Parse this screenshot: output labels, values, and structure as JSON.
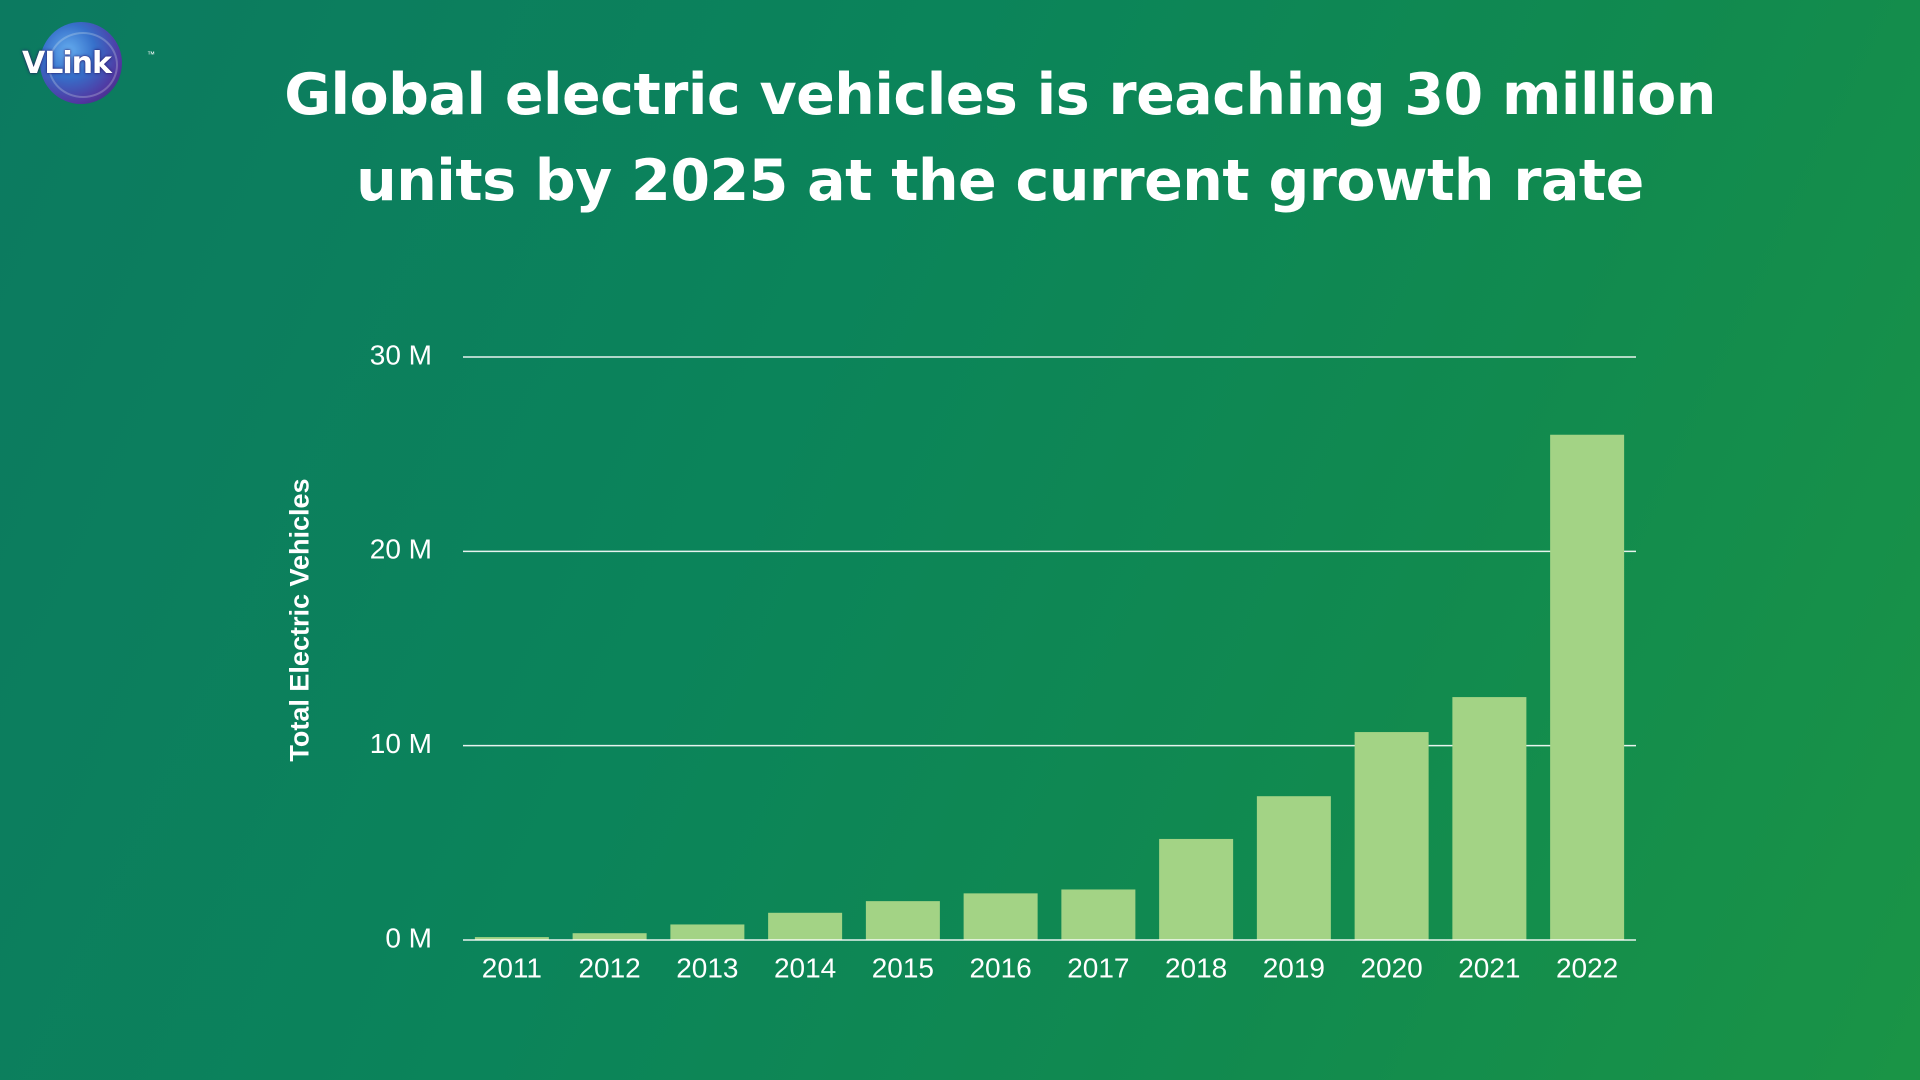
{
  "logo": {
    "text": "VLink",
    "tm": "™"
  },
  "title": {
    "line1": "Global electric vehicles is reaching 30 million",
    "line2": "units by 2025 at the current growth rate"
  },
  "colors": {
    "bar": "#a3d385",
    "gridline": "#ffffff",
    "text": "#ffffff"
  },
  "chart_data": {
    "type": "bar",
    "title": "Global electric vehicles is reaching 30 million units by 2025 at the current growth rate",
    "xlabel": "",
    "ylabel": "Total Electric Vehicles",
    "categories": [
      "2011",
      "2012",
      "2013",
      "2014",
      "2015",
      "2016",
      "2017",
      "2018",
      "2019",
      "2020",
      "2021",
      "2022"
    ],
    "values": [
      0.15,
      0.35,
      0.8,
      1.4,
      2.0,
      2.4,
      2.6,
      5.2,
      7.4,
      10.7,
      12.5,
      26.0
    ],
    "ylim": [
      0,
      30
    ],
    "yticks": [
      0,
      10,
      20,
      30
    ],
    "ytick_labels": [
      "0 M",
      "10 M",
      "20 M",
      "30 M"
    ],
    "grid": true,
    "legend": "none"
  }
}
